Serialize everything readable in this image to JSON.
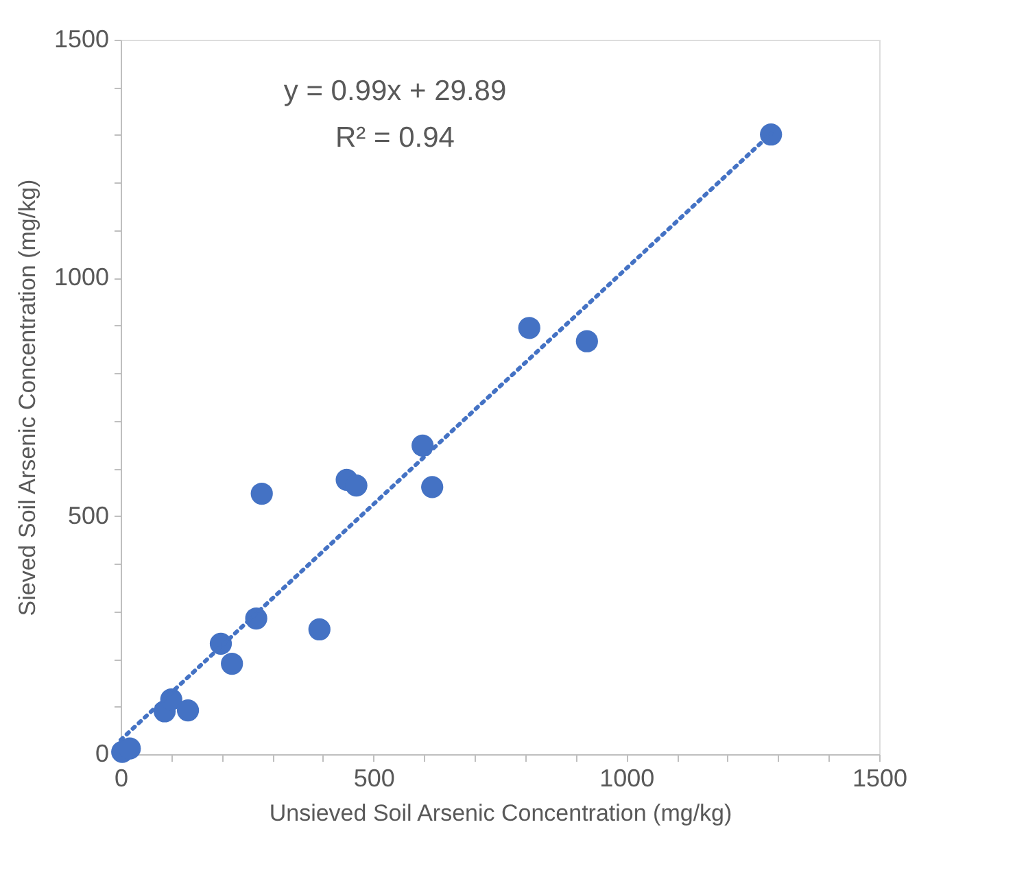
{
  "chart_data": {
    "type": "scatter",
    "xlabel": "Unsieved Soil Arsenic Concentration (mg/kg)",
    "ylabel": "Sieved Soil Arsenic Concentration (mg/kg)",
    "annotations": [
      "y = 0.99x + 29.89",
      "R² = 0.94"
    ],
    "series": [
      {
        "color": "#4472c4",
        "marker": "circle",
        "x": [
          3,
          18,
          87,
          100,
          133,
          198,
          220,
          268,
          393,
          279,
          447,
          466,
          597,
          616,
          808,
          922,
          1286
        ],
        "values": [
          5,
          12,
          90,
          115,
          92,
          232,
          190,
          285,
          262,
          547,
          576,
          564,
          648,
          561,
          895,
          867,
          1301
        ]
      },
      {
        "type": "line",
        "color": "#4472c4",
        "line_style": "dotted",
        "x": [
          0,
          1286
        ],
        "values": [
          30,
          1303
        ]
      }
    ],
    "xlim": [
      0,
      1500
    ],
    "ylim": [
      0,
      1500
    ],
    "xticks": [
      0,
      {
        "value": 100,
        "label": null
      },
      {
        "value": 200,
        "label": null
      },
      {
        "value": 300,
        "label": null
      },
      {
        "value": 400,
        "label": null
      },
      500,
      {
        "value": 600,
        "label": null
      },
      {
        "value": 700,
        "label": null
      },
      {
        "value": 800,
        "label": null
      },
      {
        "value": 900,
        "label": null
      },
      1000,
      {
        "value": 1100,
        "label": null
      },
      {
        "value": 1200,
        "label": null
      },
      {
        "value": 1300,
        "label": null
      },
      {
        "value": 1400,
        "label": null
      },
      1500
    ],
    "yticks": [
      0,
      {
        "value": 100,
        "label": null
      },
      {
        "value": 200,
        "label": null
      },
      {
        "value": 300,
        "label": null
      },
      {
        "value": 400,
        "label": null
      },
      500,
      {
        "value": 600,
        "label": null
      },
      {
        "value": 700,
        "label": null
      },
      {
        "value": 800,
        "label": null
      },
      {
        "value": 900,
        "label": null
      },
      1000,
      {
        "value": 1100,
        "label": null
      },
      {
        "value": 1200,
        "label": null
      },
      {
        "value": 1300,
        "label": null
      },
      {
        "value": 1400,
        "label": null
      },
      1500
    ],
    "grid": false
  }
}
